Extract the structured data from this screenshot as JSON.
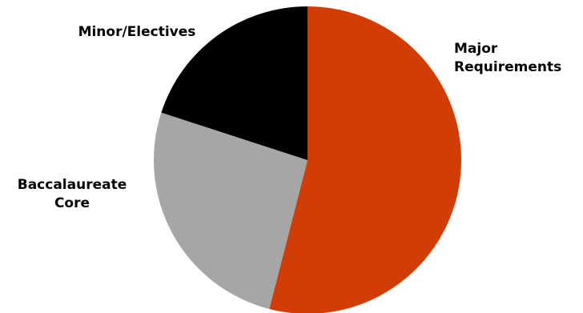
{
  "chart_data": {
    "type": "pie",
    "title": "",
    "slices": [
      {
        "label": "Major Requirements",
        "label_lines": [
          "Major",
          "Requirements"
        ],
        "value": 54,
        "color": "#d23c05"
      },
      {
        "label": "Baccalaureate Core",
        "label_lines": [
          "Baccalaureate",
          "Core"
        ],
        "value": 26,
        "color": "#a6a6a6"
      },
      {
        "label": "Minor/Electives",
        "label_lines": [
          "Minor/Electives"
        ],
        "value": 20,
        "color": "#000000"
      }
    ],
    "start_angle_deg": 0,
    "direction": "clockwise",
    "legend": "none",
    "labels": "outside"
  }
}
